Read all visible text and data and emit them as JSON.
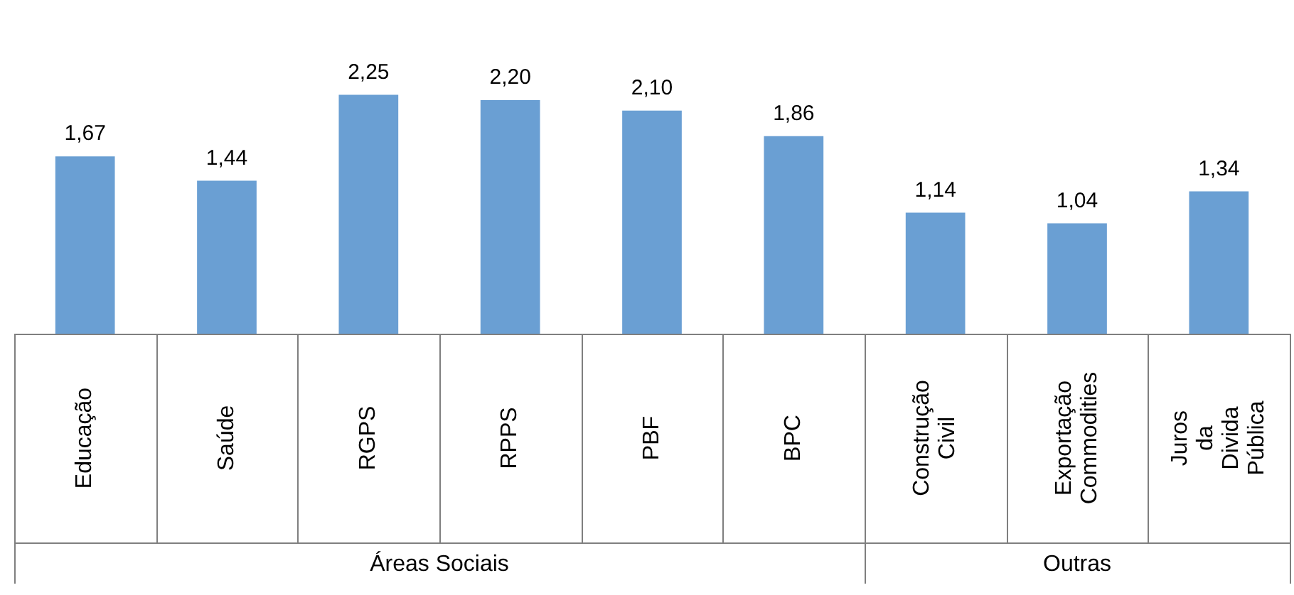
{
  "chart_data": {
    "type": "bar",
    "categories": [
      "Educação",
      "Saúde",
      "RGPS",
      "RPPS",
      "PBF",
      "BPC",
      "Construção Civil",
      "Exportação Commodities",
      "Juros da Divida Pública"
    ],
    "values": [
      1.67,
      1.44,
      2.25,
      2.2,
      2.1,
      1.86,
      1.14,
      1.04,
      1.34
    ],
    "value_labels": [
      "1,67",
      "1,44",
      "2,25",
      "2,20",
      "2,10",
      "1,86",
      "1,14",
      "1,04",
      "1,34"
    ],
    "color": "#6a9fd3",
    "annotations": [
      "Áreas Sociais",
      "Outras"
    ]
  }
}
